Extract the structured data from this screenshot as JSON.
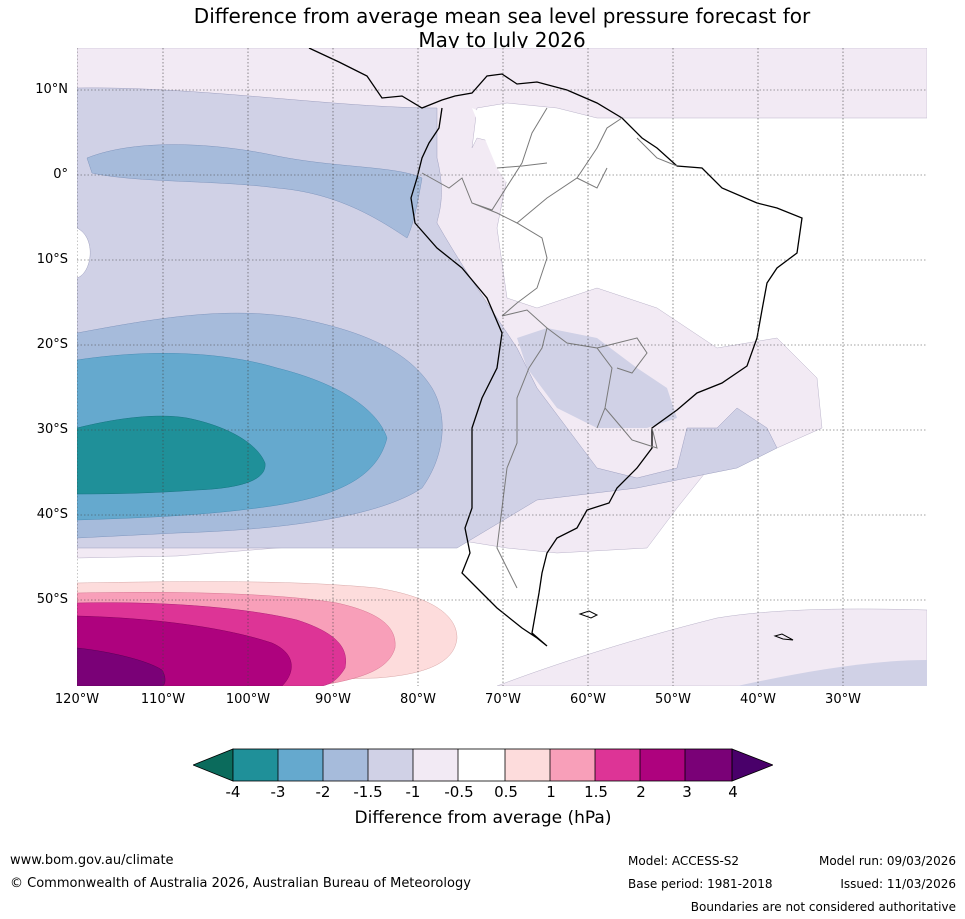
{
  "title_line1": "Difference from average mean sea level pressure forecast for",
  "title_line2": "May to July 2026",
  "lat_labels": [
    "10°N",
    "0°",
    "10°S",
    "20°S",
    "30°S",
    "40°S",
    "50°S"
  ],
  "lon_labels": [
    "120°W",
    "110°W",
    "100°W",
    "90°W",
    "80°W",
    "70°W",
    "60°W",
    "50°W",
    "40°W",
    "30°W"
  ],
  "colorbar": {
    "label": "Difference from average (hPa)",
    "ticks": [
      "-4",
      "-3",
      "-2",
      "-1.5",
      "-1",
      "-0.5",
      "0.5",
      "1",
      "1.5",
      "2",
      "3",
      "4"
    ],
    "colors": {
      "below_min": "#0b6b5c",
      "m4_m3": "#1f9099",
      "m3_m2": "#65a9ce",
      "m2_m15": "#a6bbdb",
      "m15_m1": "#d0d1e6",
      "m1_m05": "#f2eaf4",
      "m05_05": "#ffffff",
      "p05_1": "#fddcdc",
      "p1_15": "#f89fb9",
      "p15_2": "#dd3496",
      "p2_3": "#ae027e",
      "p3_4": "#7a0177",
      "above_max": "#49006a"
    }
  },
  "footer": {
    "website": "www.bom.gov.au/climate",
    "copyright": "© Commonwealth of Australia 2026, Australian Bureau of Meteorology",
    "model": "Model: ACCESS-S2",
    "base_period": "Base period: 1981-2018",
    "model_run": "Model run: 09/03/2026",
    "issued": "Issued: 11/03/2026",
    "disclaimer": "Boundaries are not considered authoritative"
  }
}
